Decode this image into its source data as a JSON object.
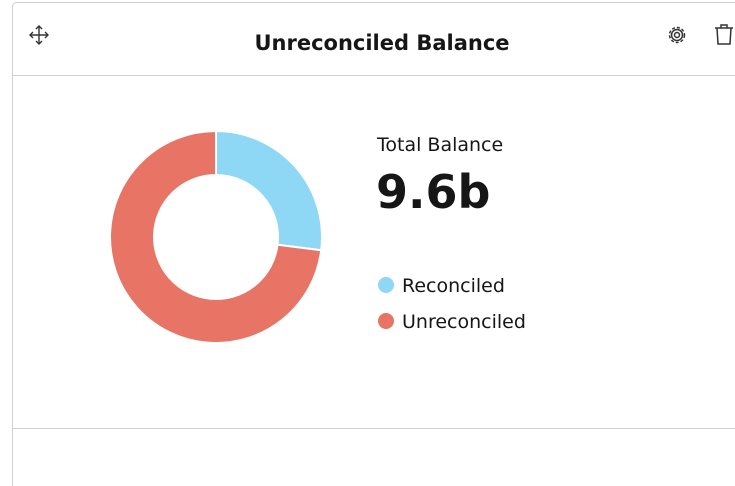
{
  "header": {
    "title": "Unreconciled Balance"
  },
  "summary": {
    "label": "Total Balance",
    "value": "9.6b"
  },
  "chart_data": {
    "type": "pie",
    "donut": true,
    "categories": [
      "Reconciled",
      "Unreconciled"
    ],
    "values": [
      27,
      73
    ],
    "colors": [
      "#8fd8f5",
      "#e87465"
    ]
  }
}
